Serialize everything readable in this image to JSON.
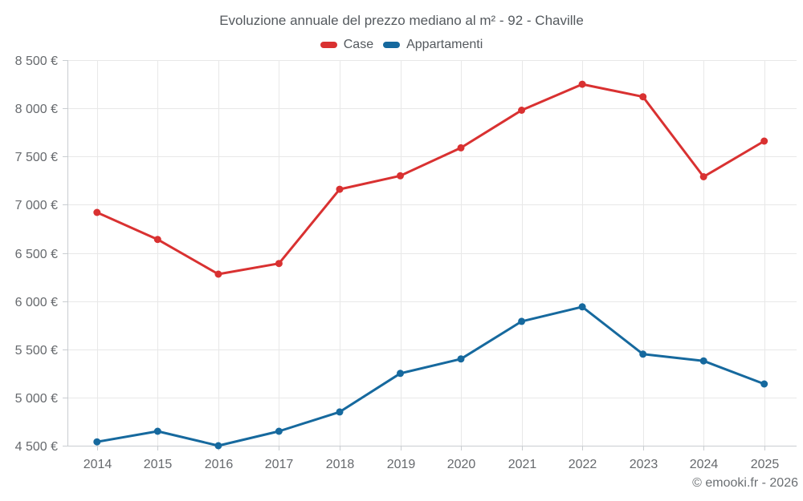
{
  "footer": {
    "text": "© emooki.fr - 2026"
  },
  "colors": {
    "grid": "#e8e8e8",
    "axis": "#c9cdd1",
    "axis_text": "#66696d",
    "case_red": "#d93131",
    "appartamenti_blue": "#16699e"
  },
  "chart_data": {
    "type": "line",
    "title": "Evoluzione annuale del prezzo mediano al m² - 92 - Chaville",
    "categories": [
      "2014",
      "2015",
      "2016",
      "2017",
      "2018",
      "2019",
      "2020",
      "2021",
      "2022",
      "2023",
      "2024",
      "2025"
    ],
    "series": [
      {
        "name": "Case",
        "color": "#d93131",
        "values": [
          6920,
          6640,
          6280,
          6390,
          7160,
          7300,
          7590,
          7980,
          8250,
          8120,
          7290,
          7660
        ]
      },
      {
        "name": "Appartamenti",
        "color": "#16699e",
        "values": [
          4540,
          4650,
          4500,
          4650,
          4850,
          5250,
          5400,
          5790,
          5940,
          5450,
          5380,
          5140
        ]
      }
    ],
    "xlabel": "",
    "ylabel": "",
    "ylim": [
      4500,
      8500
    ],
    "ytick_step": 500,
    "ytick_suffix": " €",
    "grid": true,
    "legend_position": "top",
    "marker_radius": 4.5,
    "line_width": 3
  }
}
